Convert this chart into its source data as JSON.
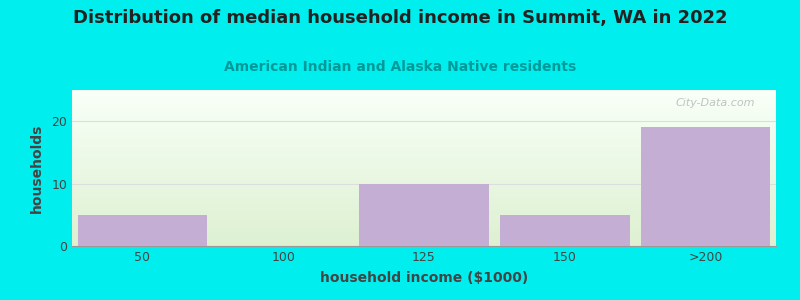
{
  "title": "Distribution of median household income in Summit, WA in 2022",
  "subtitle": "American Indian and Alaska Native residents",
  "xlabel": "household income ($1000)",
  "ylabel": "households",
  "bar_labels": [
    "50",
    "100",
    "125",
    "150",
    ">200"
  ],
  "bar_values": [
    5,
    0,
    10,
    5,
    19
  ],
  "bar_color": "#c4aed4",
  "bar_edge_color": "#c4aed4",
  "bg_color": "#00eeee",
  "plot_bg_top": "#f8fff8",
  "plot_bg_bottom": "#ddf0d0",
  "title_color": "#222222",
  "subtitle_color": "#009999",
  "axis_label_color": "#444444",
  "tick_color": "#444444",
  "grid_color": "#dddddd",
  "ylim": [
    0,
    25
  ],
  "yticks": [
    0,
    10,
    20
  ],
  "watermark": "City-Data.com",
  "watermark_color": "#aaaaaa",
  "title_fontsize": 13,
  "subtitle_fontsize": 10,
  "axis_label_fontsize": 10,
  "tick_fontsize": 9
}
